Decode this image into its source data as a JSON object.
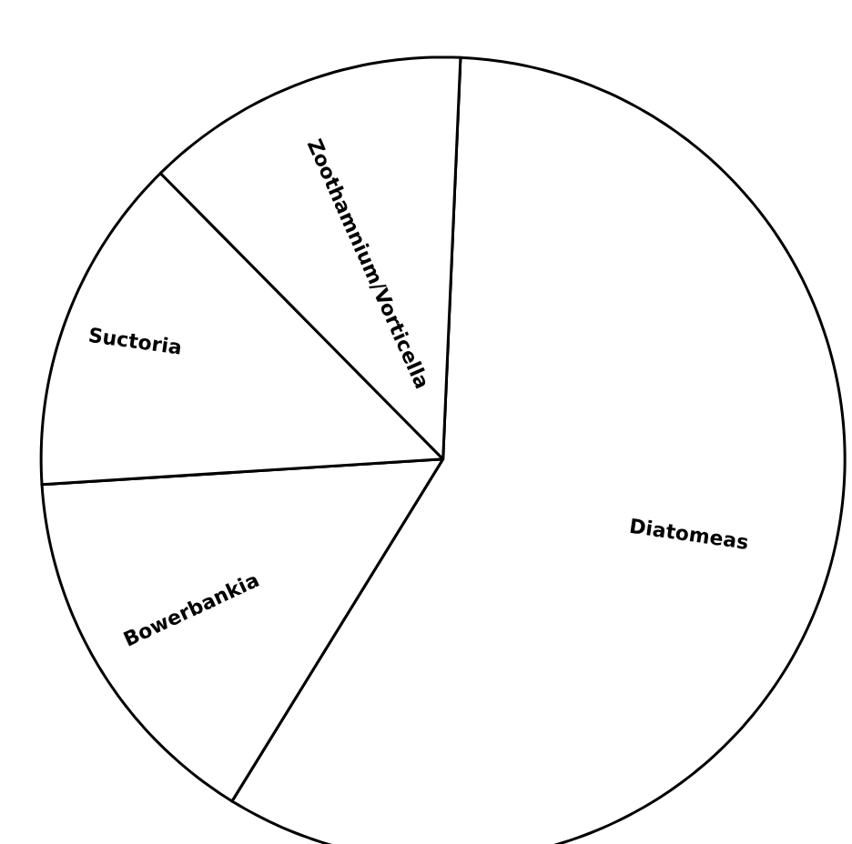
{
  "chart_data": {
    "type": "pie",
    "categories": [
      "Diatomeas",
      "Bowerbankia",
      "Suctoria",
      "Zoothamnium/Vorticella"
    ],
    "values": [
      58.1,
      15.2,
      13.6,
      13.1
    ],
    "colors": [
      "#ffffff",
      "#ffffff",
      "#ffffff",
      "#ffffff"
    ]
  }
}
